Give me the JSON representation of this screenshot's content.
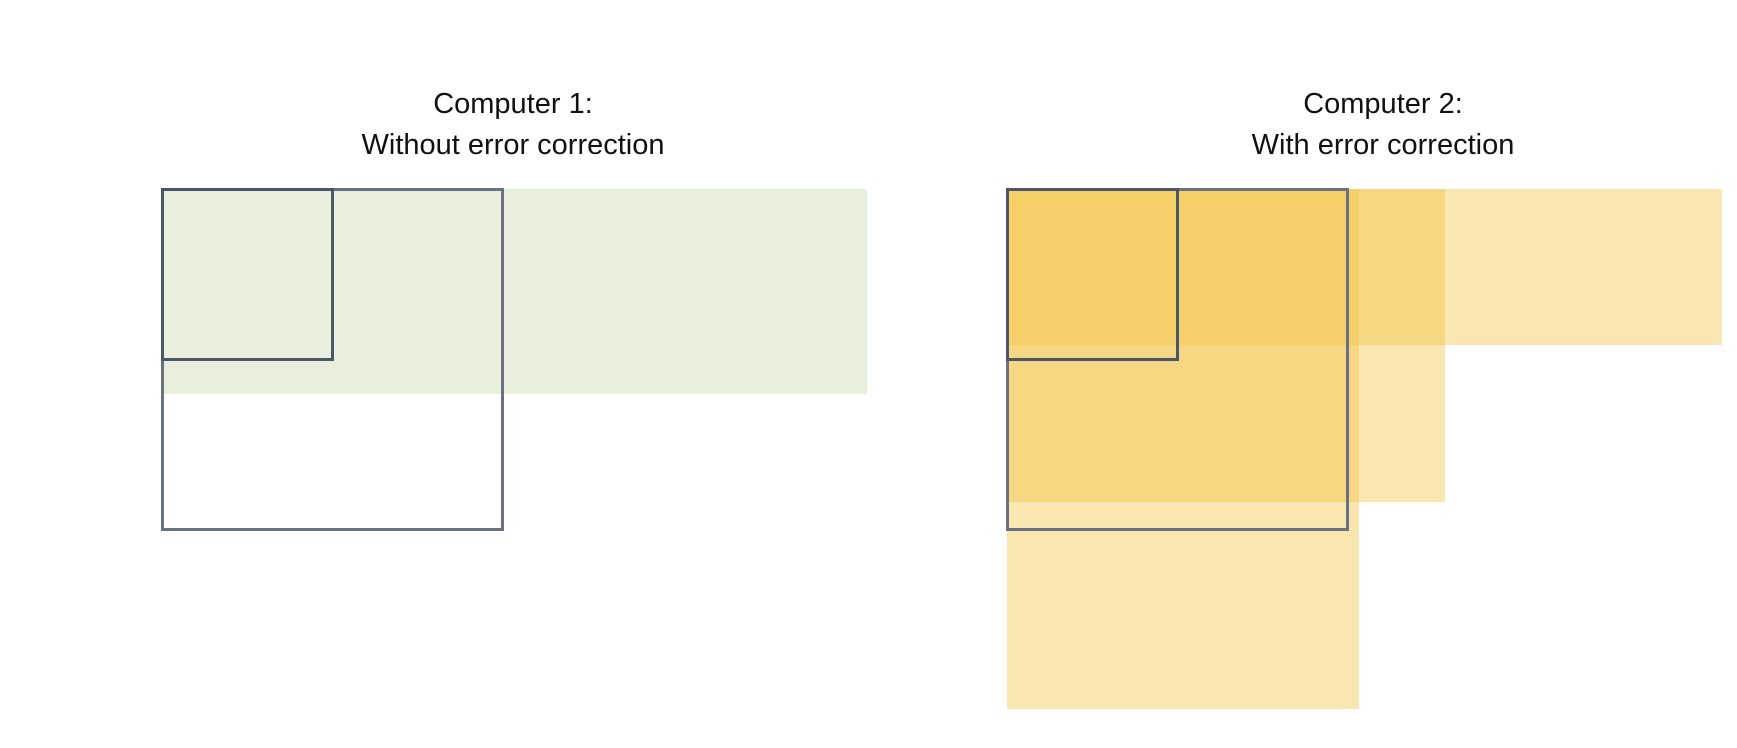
{
  "panels": [
    {
      "title_line_1": "Computer 1:",
      "title_line_2": "Without error correction"
    },
    {
      "title_line_1": "Computer 2:",
      "title_line_2": "With error correction"
    }
  ],
  "colors": {
    "no_correction_fill": "#e7eedd",
    "correction_fill": "#f3c442",
    "outline": "#6a7183",
    "inner_outline": "#4c556a"
  }
}
